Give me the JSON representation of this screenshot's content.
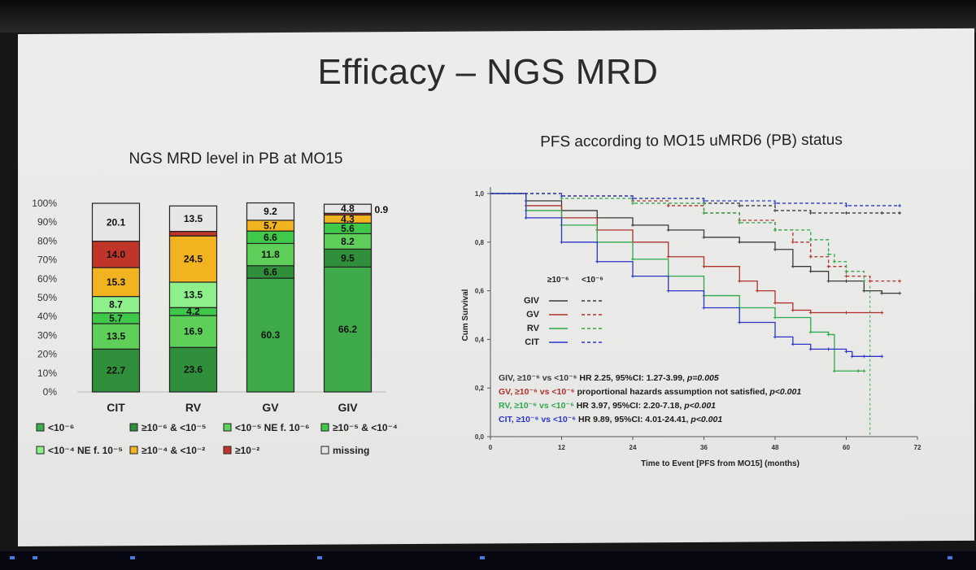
{
  "slide": {
    "title": "Efficacy – NGS MRD"
  },
  "colors": {
    "lt1e6": "#3faa4a",
    "ge1e6_lt1e5": "#2f8f3b",
    "lt1e5_ne": "#5ed05a",
    "ge1e5_lt1e4": "#3fc94a",
    "lt1e4_ne": "#8ef08a",
    "ge1e4_lt1e2": "#f2b320",
    "ge1e2": "#c0352a",
    "missing": "#e6e6e6",
    "GIV": "#3a3a3a",
    "GV": "#b0302a",
    "RV": "#2ea84a",
    "CIT": "#2b35c9"
  },
  "chart_data": [
    {
      "type": "bar",
      "stacked": true,
      "title": "NGS MRD level in PB at MO15",
      "categories": [
        "CIT",
        "RV",
        "GV",
        "GIV"
      ],
      "y_ticks": [
        "0%",
        "10%",
        "20%",
        "30%",
        "40%",
        "50%",
        "60%",
        "70%",
        "80%",
        "90%",
        "100%"
      ],
      "ylim": [
        0,
        100
      ],
      "series": [
        {
          "name": "<10⁻⁶",
          "key": "lt1e6",
          "values": [
            0,
            0,
            60.3,
            66.2
          ],
          "labels": [
            "",
            "",
            "60.3",
            "66.2"
          ]
        },
        {
          "name": "≥10⁻⁶ & <10⁻⁵",
          "key": "ge1e6_lt1e5",
          "values": [
            22.7,
            23.6,
            6.6,
            9.5
          ],
          "labels": [
            "22.7",
            "23.6",
            "6.6",
            "9.5"
          ]
        },
        {
          "name": "<10⁻⁵ NE f. 10⁻⁶",
          "key": "lt1e5_ne",
          "values": [
            13.5,
            16.9,
            11.8,
            8.2
          ],
          "labels": [
            "13.5",
            "16.9",
            "11.8",
            "8.2"
          ]
        },
        {
          "name": "≥10⁻⁵ & <10⁻⁴",
          "key": "ge1e5_lt1e4",
          "values": [
            5.7,
            4.2,
            6.6,
            5.6
          ],
          "labels": [
            "5.7",
            "4.2",
            "6.6",
            "5.6"
          ]
        },
        {
          "name": "<10⁻⁴ NE f. 10⁻⁵",
          "key": "lt1e4_ne",
          "values": [
            8.7,
            13.5,
            0,
            0
          ],
          "labels": [
            "8.7",
            "13.5",
            "",
            ""
          ]
        },
        {
          "name": "≥10⁻⁴ & <10⁻²",
          "key": "ge1e4_lt1e2",
          "values": [
            15.3,
            24.5,
            5.7,
            4.3
          ],
          "labels": [
            "15.3",
            "24.5",
            "5.7",
            "4.3"
          ]
        },
        {
          "name": "≥10⁻²",
          "key": "ge1e2",
          "values": [
            14.0,
            2.4,
            0,
            0.9
          ],
          "labels": [
            "14.0",
            "",
            "",
            ""
          ]
        },
        {
          "name": "missing",
          "key": "missing",
          "values": [
            20.1,
            13.5,
            9.2,
            4.8
          ],
          "labels": [
            "20.1",
            "13.5",
            "9.2",
            "4.8"
          ]
        }
      ],
      "outside_label": "0.9",
      "legend_rows": [
        [
          "lt1e6",
          "ge1e6_lt1e5",
          "lt1e5_ne",
          "ge1e5_lt1e4"
        ],
        [
          "lt1e4_ne",
          "ge1e4_lt1e2",
          "ge1e2",
          "missing"
        ]
      ]
    },
    {
      "type": "line",
      "title": "PFS according to MO15 uMRD6 (PB) status",
      "xlabel": "Time to Event [PFS from MO15] (months)",
      "ylabel": "Cum Survival",
      "x_ticks": [
        "0",
        "12",
        "24",
        "36",
        "48",
        "60",
        "72"
      ],
      "y_ticks": [
        "0,0",
        "0,2",
        "0,4",
        "0,6",
        "0,8",
        "1,0"
      ],
      "xlim": [
        0,
        72
      ],
      "ylim": [
        0,
        1.0
      ],
      "legend": {
        "header_solid": "≥10⁻⁶",
        "header_dashed": "<10⁻⁶",
        "rows": [
          "GIV",
          "GV",
          "RV",
          "CIT"
        ]
      },
      "series": [
        {
          "name": "GIV",
          "style": "solid",
          "x": [
            0,
            6,
            12,
            18,
            24,
            30,
            36,
            42,
            48,
            51,
            54,
            57,
            60,
            63,
            66,
            69
          ],
          "y": [
            1.0,
            0.97,
            0.93,
            0.9,
            0.87,
            0.85,
            0.82,
            0.8,
            0.77,
            0.7,
            0.68,
            0.64,
            0.64,
            0.6,
            0.59,
            0.59
          ]
        },
        {
          "name": "GIV",
          "style": "dashed",
          "x": [
            0,
            12,
            24,
            36,
            42,
            48,
            54,
            60,
            66,
            69
          ],
          "y": [
            1.0,
            0.99,
            0.98,
            0.96,
            0.95,
            0.93,
            0.92,
            0.92,
            0.92,
            0.92
          ]
        },
        {
          "name": "GV",
          "style": "solid",
          "x": [
            0,
            6,
            12,
            18,
            24,
            30,
            36,
            42,
            45,
            48,
            51,
            54,
            60,
            66
          ],
          "y": [
            1.0,
            0.95,
            0.9,
            0.85,
            0.8,
            0.74,
            0.7,
            0.64,
            0.6,
            0.55,
            0.52,
            0.51,
            0.51,
            0.51
          ]
        },
        {
          "name": "GV",
          "style": "dashed",
          "x": [
            0,
            12,
            24,
            30,
            36,
            42,
            48,
            51,
            54,
            57,
            60,
            64,
            69
          ],
          "y": [
            1.0,
            0.99,
            0.97,
            0.95,
            0.92,
            0.89,
            0.85,
            0.8,
            0.74,
            0.7,
            0.66,
            0.64,
            0.64
          ]
        },
        {
          "name": "RV",
          "style": "solid",
          "x": [
            0,
            6,
            12,
            18,
            24,
            30,
            36,
            42,
            48,
            54,
            57,
            58,
            62,
            63
          ],
          "y": [
            1.0,
            0.93,
            0.87,
            0.8,
            0.73,
            0.66,
            0.58,
            0.53,
            0.49,
            0.43,
            0.42,
            0.27,
            0.27,
            0.27
          ]
        },
        {
          "name": "RV",
          "style": "dashed",
          "x": [
            0,
            12,
            24,
            36,
            42,
            48,
            54,
            57,
            58,
            60,
            63
          ],
          "y": [
            1.0,
            0.98,
            0.96,
            0.92,
            0.88,
            0.85,
            0.81,
            0.75,
            0.72,
            0.68,
            0.64
          ]
        },
        {
          "name": "CIT",
          "style": "solid",
          "x": [
            0,
            6,
            12,
            18,
            24,
            30,
            36,
            42,
            48,
            51,
            54,
            57,
            60,
            61,
            63,
            66
          ],
          "y": [
            1.0,
            0.9,
            0.8,
            0.72,
            0.66,
            0.6,
            0.53,
            0.47,
            0.41,
            0.38,
            0.36,
            0.36,
            0.35,
            0.33,
            0.33,
            0.33
          ]
        },
        {
          "name": "CIT",
          "style": "dashed",
          "x": [
            0,
            12,
            24,
            36,
            48,
            60,
            69
          ],
          "y": [
            1.0,
            0.99,
            0.98,
            0.97,
            0.96,
            0.95,
            0.95
          ]
        }
      ],
      "reference_x": 64,
      "annotations": [
        {
          "color": "GIV",
          "lead": "GIV, ≥10⁻⁶ vs <10⁻⁶",
          "text": " HR 2.25, 95%CI: 1.27-3.99, ",
          "p": "p=0.005"
        },
        {
          "color": "GV",
          "lead": "GV, ≥10⁻⁶ vs <10⁻⁶",
          "text": " proportional hazards assumption not satisfied, ",
          "p": "p<0.001"
        },
        {
          "color": "RV",
          "lead": "RV, ≥10⁻⁶ vs <10⁻⁶",
          "text": " HR 3.97, 95%CI: 2.20-7.18, ",
          "p": "p<0.001"
        },
        {
          "color": "CIT",
          "lead": "CIT, ≥10⁻⁶ vs <10⁻⁶",
          "text": " HR 9.89, 95%CI: 4.01-24.41, ",
          "p": "p<0.001"
        }
      ]
    }
  ]
}
